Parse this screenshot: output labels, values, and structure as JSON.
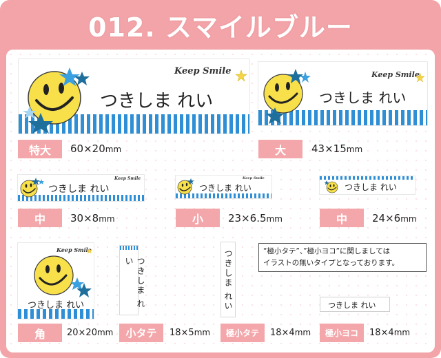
{
  "title": "012. スマイルブルー",
  "name_text": "つきしま れい",
  "brand_text": "Keep Smile",
  "colors": {
    "frame": "#f2a4a8",
    "tag": "#f4a7ab",
    "stripe": "#2f8fd6",
    "smile": "#f7e04a",
    "star_light": "#3aa0e0",
    "star_dark": "#1f6f9c"
  },
  "icons": [
    "smiley-face-icon",
    "star-icon",
    "small-yellow-star-icon"
  ],
  "sizes": [
    {
      "tag": "特大",
      "size": "60×20",
      "unit": "mm"
    },
    {
      "tag": "大",
      "size": "43×15",
      "unit": "mm"
    },
    {
      "tag": "中",
      "size": "30×8",
      "unit": "mm"
    },
    {
      "tag": "小",
      "size": "23×6.5",
      "unit": "mm"
    },
    {
      "tag": "中",
      "size": "24×6",
      "unit": "mm"
    },
    {
      "tag": "角",
      "size": "20×20",
      "unit": "mm"
    },
    {
      "tag": "小タテ",
      "size": "18×5",
      "unit": "mm"
    },
    {
      "tag": "極小タテ",
      "size": "18×4",
      "unit": "mm"
    },
    {
      "tag": "極小ヨコ",
      "size": "18×4",
      "unit": "mm"
    }
  ],
  "note": {
    "line1": "“極小タテ”、”極小ヨコ”に関しましては",
    "line2": "イラストの無いタイプとなっております。"
  }
}
